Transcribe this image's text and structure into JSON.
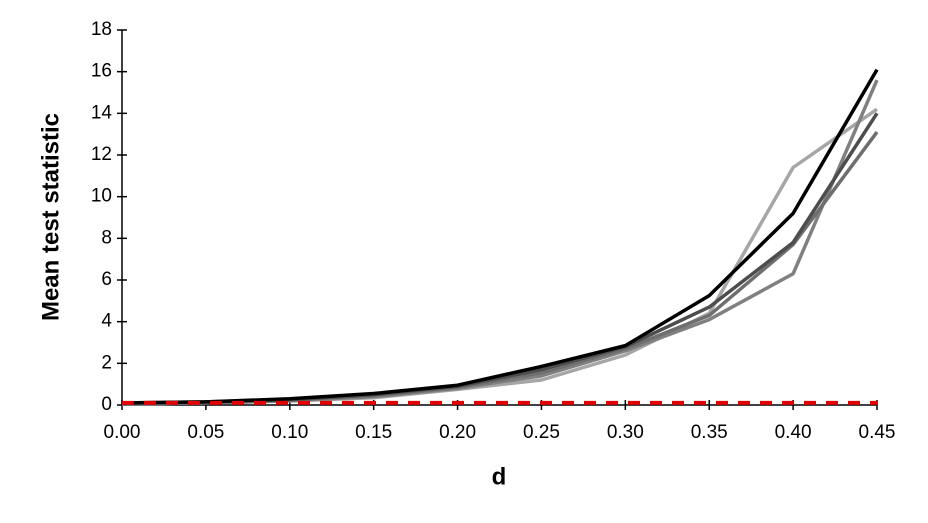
{
  "chart_data": {
    "type": "line",
    "x_label": "d",
    "y_label": "Mean test statistic",
    "x": [
      0,
      0.05,
      0.1,
      0.15,
      0.2,
      0.25,
      0.3,
      0.35,
      0.4,
      0.45
    ],
    "series": [
      {
        "color": "#a6a6a6",
        "values": [
          0.05,
          0.1,
          0.2,
          0.35,
          0.75,
          1.2,
          2.4,
          4.4,
          11.4,
          14.2
        ]
      },
      {
        "color": "#808080",
        "values": [
          0.05,
          0.1,
          0.2,
          0.4,
          0.8,
          1.4,
          2.6,
          4.1,
          6.3,
          15.6
        ]
      },
      {
        "color": "#6e6e6e",
        "values": [
          0.05,
          0.1,
          0.25,
          0.45,
          0.85,
          1.55,
          2.7,
          4.3,
          7.7,
          13.1
        ]
      },
      {
        "color": "#4d4d4d",
        "values": [
          0.1,
          0.15,
          0.25,
          0.5,
          0.9,
          1.7,
          2.8,
          4.7,
          7.8,
          14.0
        ]
      },
      {
        "color": "#000000",
        "values": [
          0.1,
          0.15,
          0.3,
          0.55,
          0.95,
          1.85,
          2.85,
          5.25,
          9.2,
          16.1
        ]
      },
      {
        "color": "#e00000",
        "dashed": true,
        "values": [
          0.1,
          0.1,
          0.1,
          0.1,
          0.1,
          0.1,
          0.1,
          0.1,
          0.1,
          0.1
        ]
      }
    ],
    "xlim": [
      0,
      0.45
    ],
    "xticks": [
      {
        "value": 0,
        "label": "0.00"
      },
      {
        "value": 0.05,
        "label": "0.05"
      },
      {
        "value": 0.1,
        "label": "0.10"
      },
      {
        "value": 0.15,
        "label": "0.15"
      },
      {
        "value": 0.2,
        "label": "0.20"
      },
      {
        "value": 0.25,
        "label": "0.25"
      },
      {
        "value": 0.3,
        "label": "0.30"
      },
      {
        "value": 0.35,
        "label": "0.35"
      },
      {
        "value": 0.4,
        "label": "0.40"
      },
      {
        "value": 0.45,
        "label": "0.45"
      }
    ],
    "ylim": [
      0,
      18
    ],
    "yticks": [
      0,
      2,
      4,
      6,
      8,
      10,
      12,
      14,
      16,
      18
    ],
    "grid": false
  }
}
